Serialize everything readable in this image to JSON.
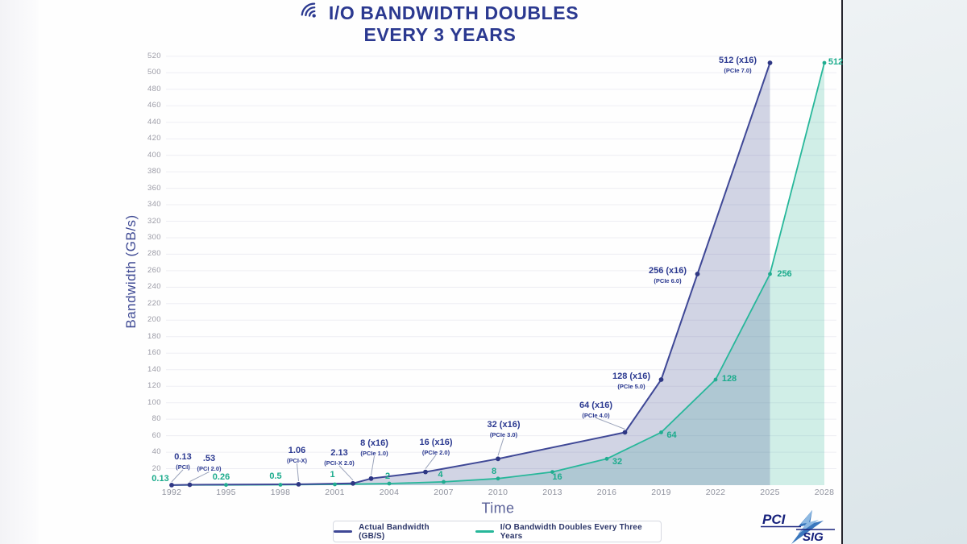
{
  "header": {
    "title_line1": "I/O BANDWIDTH DOUBLES",
    "title_line2": "EVERY 3 YEARS",
    "icon": "wifi-signal-icon",
    "title_color": "#2b3990"
  },
  "chart_data": {
    "type": "line",
    "title": "I/O Bandwidth Doubles Every 3 Years",
    "xlabel": "Time",
    "ylabel": "Bandwidth (GB/s)",
    "x_ticks": [
      1992,
      1995,
      1998,
      2001,
      2004,
      2007,
      2010,
      2013,
      2016,
      2019,
      2022,
      2025,
      2028
    ],
    "y_ticks": [
      20,
      40,
      60,
      80,
      100,
      120,
      140,
      160,
      180,
      200,
      220,
      240,
      260,
      280,
      300,
      320,
      340,
      360,
      380,
      400,
      420,
      440,
      460,
      480,
      500,
      520
    ],
    "ylim": [
      0,
      520
    ],
    "xlim": [
      1992,
      2028
    ],
    "grid": true,
    "legend_position": "bottom",
    "series": [
      {
        "name": "Actual Bandwidth (GB/S)",
        "color": "#3f4896",
        "dot_color": "#2e3784",
        "fill": "rgba(76,86,150,0.25)",
        "points": [
          {
            "year": 1992,
            "value": 0.13,
            "label": "0.13",
            "sub": "(PCI)",
            "dx": 14,
            "dy": -40,
            "pointer": true
          },
          {
            "year": 1993,
            "value": 0.53,
            "label": ".53",
            "sub": "(PCI 2.0)",
            "dx": 24,
            "dy": -37,
            "pointer": true
          },
          {
            "year": 1999,
            "value": 1.06,
            "label": "1.06",
            "sub": "(PCI-X)",
            "dx": -2,
            "dy": -47,
            "pointer": true
          },
          {
            "year": 2002,
            "value": 2.13,
            "label": "2.13",
            "sub": "(PCI-X 2.0)",
            "dx": -17,
            "dy": -43,
            "pointer": true
          },
          {
            "year": 2003,
            "value": 8,
            "label": "8 (x16)",
            "sub": "(PCIe 1.0)",
            "dx": 4,
            "dy": -49,
            "pointer": true
          },
          {
            "year": 2006,
            "value": 16,
            "label": "16 (x16)",
            "sub": "(PCIe 2.0)",
            "dx": 13,
            "dy": -42,
            "pointer": true
          },
          {
            "year": 2010,
            "value": 32,
            "label": "32 (x16)",
            "sub": "(PCIe 3.0)",
            "dx": 7,
            "dy": -47,
            "pointer": true
          },
          {
            "year": 2017,
            "value": 64,
            "label": "64 (x16)",
            "sub": "(PCIe 4.0)",
            "dx": -36,
            "dy": -39,
            "pointer": true
          },
          {
            "year": 2019,
            "value": 128,
            "label": "128 (x16)",
            "sub": "(PCIe 5.0)",
            "dx": -37,
            "dy": -9,
            "pointer": false
          },
          {
            "year": 2021,
            "value": 256,
            "label": "256 (x16)",
            "sub": "(PCIe 6.0)",
            "dx": -37,
            "dy": -9,
            "pointer": false
          },
          {
            "year": 2025,
            "value": 512,
            "label": "512 (x16)",
            "sub": "(PCIe 7.0)",
            "dx": -40,
            "dy": -8,
            "pointer": false
          }
        ]
      },
      {
        "name": "I/O Bandwidth Doubles Every Three Years",
        "color": "#27b79a",
        "dot_color": "#21ac90",
        "fill": "rgba(46,180,152,0.22)",
        "points": [
          {
            "year": 1992,
            "value": 0.13,
            "label": "0.13",
            "dx": -14,
            "dy": -8
          },
          {
            "year": 1995,
            "value": 0.26,
            "label": "0.26",
            "dx": -6,
            "dy": -10
          },
          {
            "year": 1998,
            "value": 0.5,
            "label": "0.5",
            "dx": -6,
            "dy": -10
          },
          {
            "year": 2001,
            "value": 1,
            "label": "1",
            "dx": -3,
            "dy": -12
          },
          {
            "year": 2004,
            "value": 2,
            "label": "2",
            "dx": -2,
            "dy": -9
          },
          {
            "year": 2007,
            "value": 4,
            "label": "4",
            "dx": -4,
            "dy": -9
          },
          {
            "year": 2010,
            "value": 8,
            "label": "8",
            "dx": -5,
            "dy": -9
          },
          {
            "year": 2013,
            "value": 16,
            "label": "16",
            "dx": 6,
            "dy": 6
          },
          {
            "year": 2016,
            "value": 32,
            "label": "32",
            "dx": 13,
            "dy": 4
          },
          {
            "year": 2019,
            "value": 64,
            "label": "64",
            "dx": 13,
            "dy": 3
          },
          {
            "year": 2022,
            "value": 128,
            "label": "128",
            "dx": 17,
            "dy": -1
          },
          {
            "year": 2025,
            "value": 256,
            "label": "256",
            "dx": 18,
            "dy": 0
          },
          {
            "year": 2028,
            "value": 512,
            "label": "512",
            "dx": 14,
            "dy": -1
          }
        ]
      }
    ]
  },
  "legend": {
    "items": [
      "Actual Bandwidth (GB/S)",
      "I/O Bandwidth Doubles Every Three Years"
    ]
  },
  "logo": {
    "line1": "PCI",
    "line2": "SIG"
  }
}
